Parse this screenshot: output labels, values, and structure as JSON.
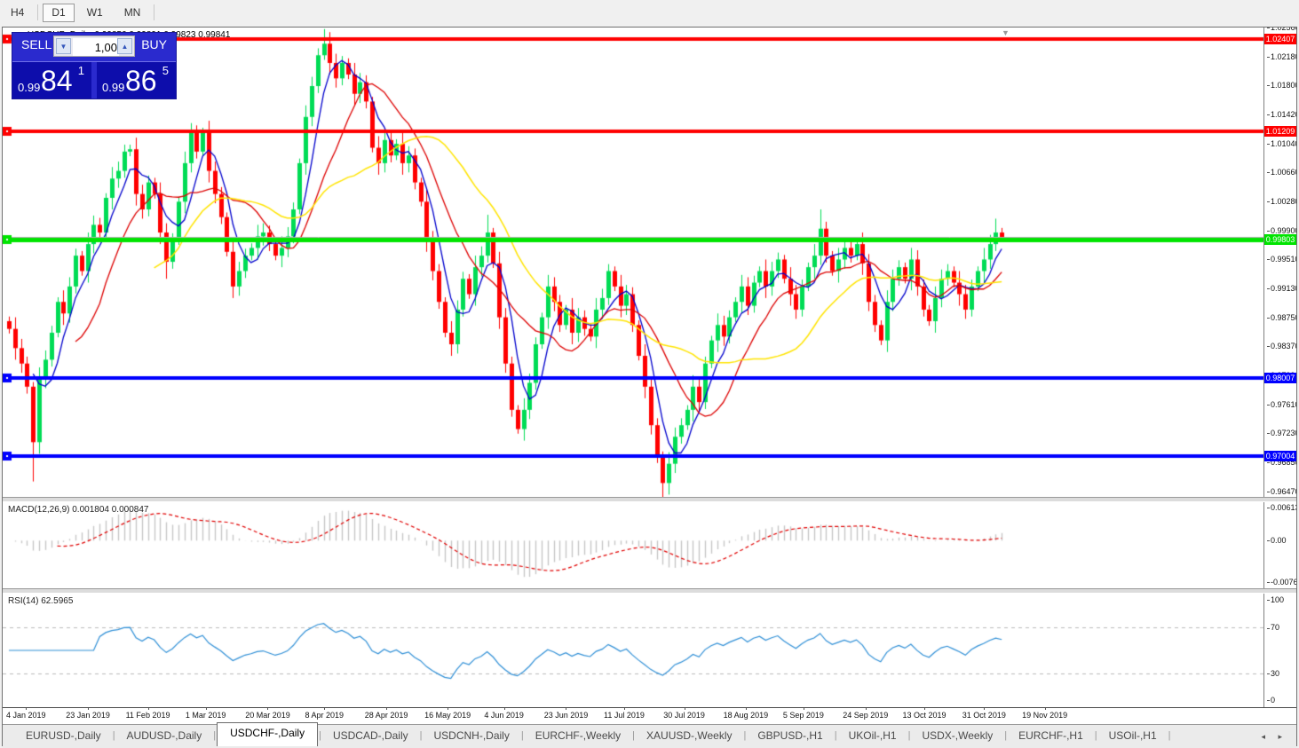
{
  "toolbar": {
    "buttons": [
      {
        "label": "H4",
        "active": false
      },
      {
        "label": "D1",
        "active": true
      },
      {
        "label": "W1",
        "active": false
      },
      {
        "label": "MN",
        "active": false
      }
    ]
  },
  "chart": {
    "title": {
      "marker": "▲",
      "symbol": "USDCHF-,Daily",
      "ohlc": "0.99850 0.99891 0.99823 0.99841"
    },
    "shift_marker": "▼",
    "trade_panel": {
      "sell_label": "SELL",
      "buy_label": "BUY",
      "volume": "1,00",
      "spin_down": "▼",
      "spin_up": "▲",
      "sell_price": {
        "prefix": "0.99",
        "main": "84",
        "sup": "1"
      },
      "buy_price": {
        "prefix": "0.99",
        "main": "86",
        "sup": "5"
      }
    },
    "price_axis": {
      "top": 1.0256,
      "bottom": 0.9647,
      "labels": [
        "1.02560",
        "1.02180",
        "1.01800",
        "1.01420",
        "1.01040",
        "1.00660",
        "1.00280",
        "0.99900",
        "0.99510",
        "0.99130",
        "0.98750",
        "0.98370",
        "0.97990",
        "0.97610",
        "0.97230",
        "0.96850",
        "0.96470"
      ]
    },
    "hlines": [
      {
        "price": 1.02407,
        "label": "1.02407",
        "color": "#ff0000",
        "thickness": 4
      },
      {
        "price": 1.01209,
        "label": "1.01209",
        "color": "#ff0000",
        "thickness": 4
      },
      {
        "price": 0.99803,
        "label": "0.99803",
        "color": "#00e400",
        "thickness": 5
      },
      {
        "price": 0.98007,
        "label": "0.98007",
        "color": "#0000ff",
        "thickness": 4
      },
      {
        "price": 0.97004,
        "label": "0.97004",
        "color": "#0000ff",
        "thickness": 4
      }
    ],
    "bid_line": {
      "price": 0.99841,
      "color": "#b0b0b0"
    },
    "theme": {
      "candle_up": "#00dc55",
      "candle_down": "#ff0000",
      "ma_fast": "#0000cc",
      "ma_mid": "#dd0000",
      "ma_slow": "#ffe400",
      "macd_hist": "#c6c6c6",
      "macd_signal": "#e00000",
      "rsi_line": "#2f8fd6",
      "level_dash": "#bbbbbb"
    },
    "chart_data": {
      "type": "candlestick",
      "symbol": "USDCHF",
      "timeframe": "Daily",
      "closes": [
        0.9865,
        0.984,
        0.982,
        0.979,
        0.9718,
        0.98,
        0.9825,
        0.986,
        0.99,
        0.9885,
        0.992,
        0.996,
        0.994,
        0.9975,
        1.0,
        0.999,
        1.0035,
        1.006,
        1.007,
        1.0095,
        1.0098,
        1.004,
        1.002,
        1.0055,
        1.004,
        0.999,
        0.9952,
        0.998,
        1.003,
        1.008,
        1.012,
        1.0095,
        1.012,
        1.007,
        1.004,
        1.001,
        0.9965,
        0.992,
        0.994,
        0.996,
        0.997,
        0.9985,
        0.999,
        0.9975,
        0.996,
        0.997,
        0.9985,
        1.002,
        1.008,
        1.014,
        1.018,
        1.022,
        1.0235,
        1.021,
        1.019,
        1.021,
        1.0195,
        1.017,
        1.0185,
        1.016,
        1.01,
        1.008,
        1.011,
        1.009,
        1.0105,
        1.008,
        1.009,
        1.0055,
        1.003,
        0.998,
        0.994,
        0.99,
        0.986,
        0.9845,
        0.989,
        0.993,
        0.991,
        0.9945,
        0.996,
        0.999,
        0.995,
        0.988,
        0.982,
        0.976,
        0.9735,
        0.976,
        0.9795,
        0.9845,
        0.988,
        0.992,
        0.99,
        0.987,
        0.989,
        0.986,
        0.988,
        0.9865,
        0.9855,
        0.989,
        0.9905,
        0.994,
        0.992,
        0.9895,
        0.991,
        0.987,
        0.983,
        0.979,
        0.974,
        0.97,
        0.9665,
        0.969,
        0.9725,
        0.974,
        0.976,
        0.979,
        0.977,
        0.982,
        0.985,
        0.987,
        0.9855,
        0.988,
        0.99,
        0.992,
        0.9895,
        0.9925,
        0.994,
        0.992,
        0.994,
        0.9955,
        0.993,
        0.991,
        0.989,
        0.992,
        0.9945,
        0.996,
        0.9995,
        0.996,
        0.994,
        0.9955,
        0.997,
        0.996,
        0.9975,
        0.995,
        0.99,
        0.987,
        0.985,
        0.99,
        0.993,
        0.9945,
        0.993,
        0.9955,
        0.992,
        0.989,
        0.9875,
        0.9905,
        0.993,
        0.994,
        0.9925,
        0.991,
        0.989,
        0.992,
        0.994,
        0.9955,
        0.9975,
        0.999,
        0.9984
      ],
      "wick_spikes": {
        "4": -0.0045,
        "26": -0.001,
        "52": 0.0013,
        "79": 0.0014,
        "108": -0.0018,
        "134": 0.0013,
        "163": 0.0009
      }
    }
  },
  "macd": {
    "label": "MACD(12,26,9) 0.001804 0.000847",
    "axis_top": "0.00613",
    "axis_zero": "0.00",
    "axis_bottom": "-0.00761",
    "range_top": 0.00613,
    "range_bottom": -0.00761
  },
  "rsi": {
    "label": "RSI(14) 62.5965",
    "axis": [
      "100",
      "70",
      "30",
      "0"
    ],
    "levels": [
      70,
      30
    ]
  },
  "dates": [
    "4 Jan 2019",
    "23 Jan 2019",
    "11 Feb 2019",
    "1 Mar 2019",
    "20 Mar 2019",
    "8 Apr 2019",
    "28 Apr 2019",
    "16 May 2019",
    "4 Jun 2019",
    "23 Jun 2019",
    "11 Jul 2019",
    "30 Jul 2019",
    "18 Aug 2019",
    "5 Sep 2019",
    "24 Sep 2019",
    "13 Oct 2019",
    "31 Oct 2019",
    "19 Nov 2019"
  ],
  "tabs": {
    "items": [
      {
        "label": "EURUSD-,Daily",
        "active": false
      },
      {
        "label": "AUDUSD-,Daily",
        "active": false
      },
      {
        "label": "USDCHF-,Daily",
        "active": true
      },
      {
        "label": "USDCAD-,Daily",
        "active": false
      },
      {
        "label": "USDCNH-,Daily",
        "active": false
      },
      {
        "label": "EURCHF-,Weekly",
        "active": false
      },
      {
        "label": "XAUUSD-,Weekly",
        "active": false
      },
      {
        "label": "GBPUSD-,H1",
        "active": false
      },
      {
        "label": "UKOil-,H1",
        "active": false
      },
      {
        "label": "USDX-,Weekly",
        "active": false
      },
      {
        "label": "EURCHF-,H1",
        "active": false
      },
      {
        "label": "USOil-,H1",
        "active": false
      }
    ],
    "scroll_left": "◂",
    "scroll_right": "▸"
  }
}
